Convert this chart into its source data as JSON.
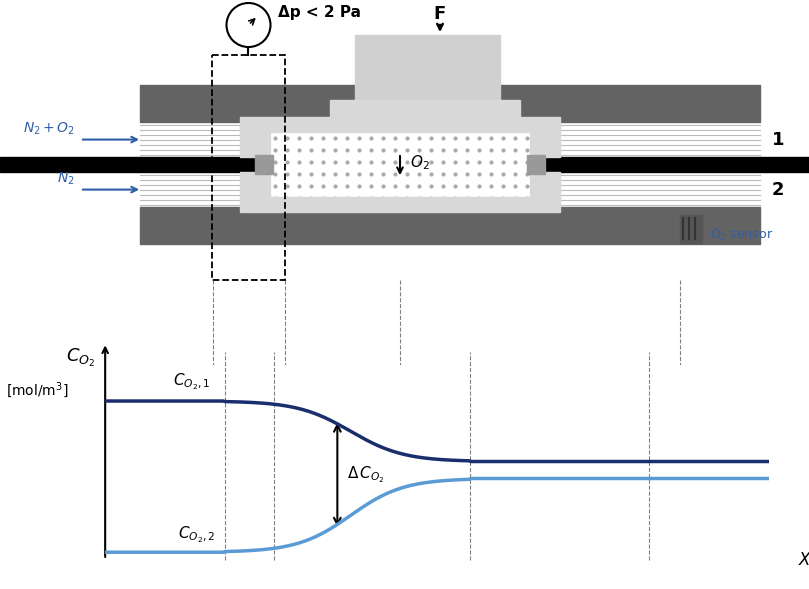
{
  "bg_color": "#ffffff",
  "pressure_label": "Δp < 2 Pa",
  "force_label": "F",
  "gas1_label": "$N_2+O_2$",
  "gas2_label": "$N_2$",
  "channel1_label": "1",
  "channel2_label": "2",
  "o2_label": "$O_2$",
  "sensor_label": "$O_2$ sensor",
  "dark_gray": "#636363",
  "medium_gray": "#999999",
  "light_gray_line": "#bbbbbb",
  "black": "#000000",
  "dark_blue": "#1a2e6e",
  "light_blue": "#5b9bd5",
  "cell_light": "#d8d8d8",
  "force_block": "#d0d0d0",
  "arrow_color": "#2e5ea8",
  "graph_ylabel1": "$C_{O_2}$",
  "graph_ylabel2": "[mol/m$^3$]",
  "graph_xlabel": "X",
  "co2_1_label": "$C_{O_2,1}$",
  "co2_2_label": "$C_{O_2,2}$",
  "delta_label": "$\\Delta\\,C_{O_2}$"
}
